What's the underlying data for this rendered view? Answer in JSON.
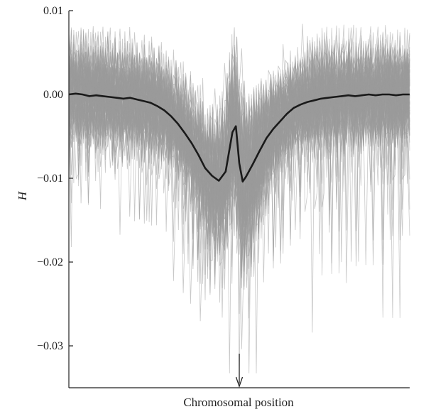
{
  "chart_data": {
    "type": "line",
    "title": "",
    "xlabel": "Chromosomal position",
    "ylabel": "H",
    "ylim": [
      -0.035,
      0.01
    ],
    "xlim": [
      0,
      1
    ],
    "yticks": [
      0.01,
      0.0,
      -0.01,
      -0.02,
      -0.03
    ],
    "ytick_labels": [
      "0.01",
      "0.00",
      "−0.01",
      "−0.02",
      "−0.03"
    ],
    "grid": false,
    "legend": "none",
    "annotation": {
      "type": "arrow",
      "x": 0.5,
      "direction": "down"
    },
    "series": [
      {
        "role": "mean",
        "color": "#1a1a1a",
        "x": [
          0.0,
          0.02,
          0.04,
          0.06,
          0.08,
          0.1,
          0.12,
          0.14,
          0.16,
          0.18,
          0.2,
          0.22,
          0.24,
          0.26,
          0.28,
          0.3,
          0.32,
          0.34,
          0.36,
          0.38,
          0.4,
          0.42,
          0.44,
          0.46,
          0.48,
          0.49,
          0.5,
          0.51,
          0.52,
          0.54,
          0.56,
          0.58,
          0.6,
          0.62,
          0.64,
          0.66,
          0.68,
          0.7,
          0.72,
          0.74,
          0.76,
          0.78,
          0.8,
          0.82,
          0.84,
          0.86,
          0.88,
          0.9,
          0.92,
          0.94,
          0.96,
          0.98,
          1.0
        ],
        "y": [
          0.0,
          0.0001,
          0.0,
          -0.0002,
          -0.0001,
          -0.0002,
          -0.0003,
          -0.0004,
          -0.0005,
          -0.0004,
          -0.0006,
          -0.0008,
          -0.001,
          -0.0014,
          -0.0019,
          -0.0026,
          -0.0035,
          -0.0046,
          -0.0058,
          -0.0072,
          -0.0088,
          -0.0097,
          -0.0103,
          -0.0092,
          -0.0045,
          -0.0038,
          -0.0082,
          -0.0104,
          -0.0098,
          -0.0083,
          -0.0067,
          -0.0052,
          -0.0041,
          -0.0032,
          -0.0023,
          -0.0016,
          -0.0012,
          -0.0009,
          -0.0007,
          -0.0005,
          -0.0004,
          -0.0003,
          -0.0002,
          -0.0001,
          -0.0002,
          -0.0001,
          0.0,
          -0.0001,
          0.0,
          0.0,
          -0.0001,
          0.0,
          0.0
        ]
      }
    ],
    "replicates": {
      "color": "#9a9a9a",
      "count": 100,
      "noise_sd": 0.0038,
      "max_y": 0.0085
    }
  }
}
